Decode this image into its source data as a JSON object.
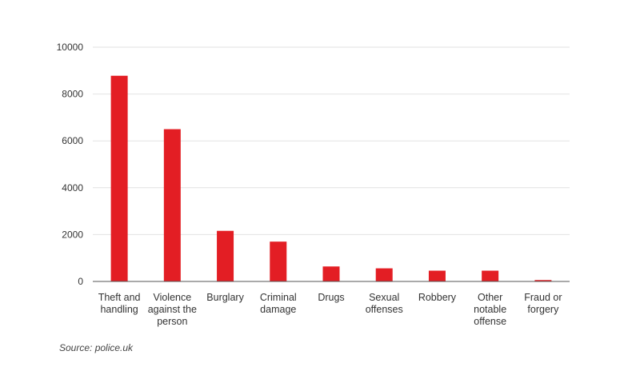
{
  "chart_data": {
    "type": "bar",
    "categories": [
      [
        "Theft and",
        "handling"
      ],
      [
        "Violence",
        "against the",
        "person"
      ],
      [
        "Burglary"
      ],
      [
        "Criminal",
        "damage"
      ],
      [
        "Drugs"
      ],
      [
        "Sexual",
        "offenses"
      ],
      [
        "Robbery"
      ],
      [
        "Other",
        "notable",
        "offense"
      ],
      [
        "Fraud or",
        "forgery"
      ]
    ],
    "values": [
      8780,
      6500,
      2160,
      1700,
      640,
      560,
      460,
      460,
      60
    ],
    "ylim": [
      0,
      10000
    ],
    "yticks": [
      "0",
      "2000",
      "4000",
      "6000",
      "8000",
      "10000"
    ],
    "grid": true,
    "bar_color": "#e31e24"
  },
  "source": "Source: police.uk"
}
